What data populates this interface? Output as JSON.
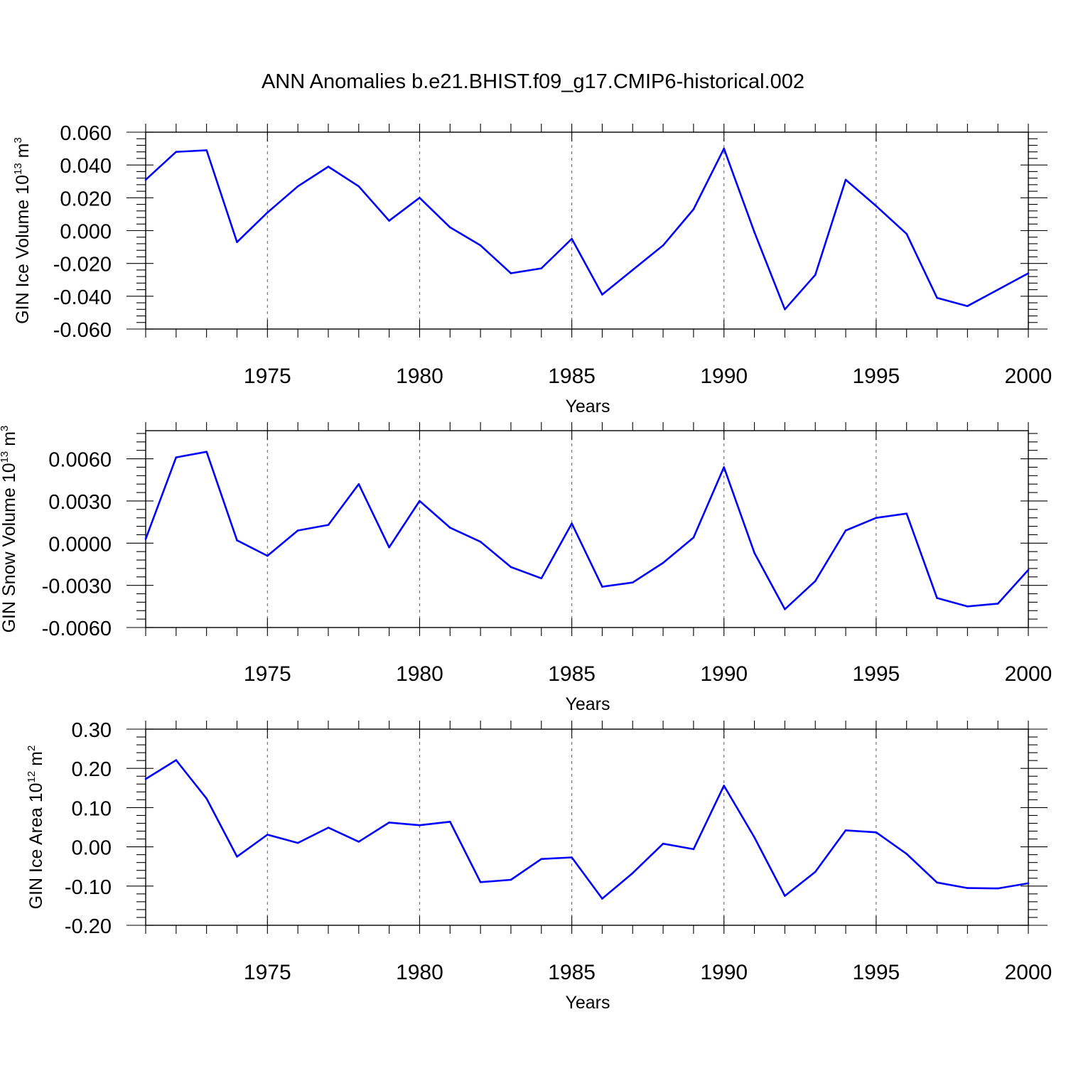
{
  "title": "ANN Anomalies b.e21.BHIST.f09_g17.CMIP6-historical.002",
  "styles": {
    "line_color": "#0000ff",
    "axis_color": "#000000",
    "grid_color": "#6a6a6a"
  },
  "chart_data": [
    {
      "type": "line",
      "xlabel": "Years",
      "ylabel_parts": {
        "main": "GIN Ice Volume 10",
        "exp": "13",
        "unit": " m",
        "unit_exp": "3"
      },
      "xlim": [
        1971,
        2000
      ],
      "ylim": [
        -0.06,
        0.06
      ],
      "yticks": [
        -0.06,
        -0.04,
        -0.02,
        0.0,
        0.02,
        0.04,
        0.06
      ],
      "ytick_labels": [
        "-0.060",
        "-0.040",
        "-0.020",
        "0.000",
        "0.020",
        "0.040",
        "0.060"
      ],
      "xticks": [
        1975,
        1980,
        1985,
        1990,
        1995,
        2000
      ],
      "xtick_labels": [
        "1975",
        "1980",
        "1985",
        "1990",
        "1995",
        "2000"
      ],
      "grid": "dashed vertical at labeled years",
      "series": [
        {
          "x": [
            1971,
            1972,
            1973,
            1974,
            1975,
            1976,
            1977,
            1978,
            1979,
            1980,
            1981,
            1982,
            1983,
            1984,
            1985,
            1986,
            1987,
            1988,
            1989,
            1990,
            1991,
            1992,
            1993,
            1994,
            1995,
            1996,
            1997,
            1998,
            1999,
            2000
          ],
          "y": [
            0.031,
            0.048,
            0.049,
            -0.007,
            0.011,
            0.027,
            0.039,
            0.027,
            0.006,
            0.02,
            0.002,
            -0.009,
            -0.026,
            -0.023,
            -0.005,
            -0.039,
            -0.024,
            -0.009,
            0.013,
            0.05,
            -0.001,
            -0.048,
            -0.027,
            0.031,
            0.015,
            -0.002,
            -0.041,
            -0.046,
            -0.036,
            -0.026
          ]
        }
      ]
    },
    {
      "type": "line",
      "xlabel": "Years",
      "ylabel_parts": {
        "main": "GIN Snow Volume 10",
        "exp": "13",
        "unit": " m",
        "unit_exp": "3"
      },
      "xlim": [
        1971,
        2000
      ],
      "ylim": [
        -0.006,
        0.008
      ],
      "yticks": [
        -0.006,
        -0.003,
        0.0,
        0.003,
        0.006
      ],
      "ytick_labels": [
        "-0.0060",
        "-0.0030",
        "0.0000",
        "0.0030",
        "0.0060"
      ],
      "xticks": [
        1975,
        1980,
        1985,
        1990,
        1995,
        2000
      ],
      "xtick_labels": [
        "1975",
        "1980",
        "1985",
        "1990",
        "1995",
        "2000"
      ],
      "grid": "dashed vertical at labeled years",
      "series": [
        {
          "x": [
            1971,
            1972,
            1973,
            1974,
            1975,
            1976,
            1977,
            1978,
            1979,
            1980,
            1981,
            1982,
            1983,
            1984,
            1985,
            1986,
            1987,
            1988,
            1989,
            1990,
            1991,
            1992,
            1993,
            1994,
            1995,
            1996,
            1997,
            1998,
            1999,
            2000
          ],
          "y": [
            0.0003,
            0.0061,
            0.0065,
            0.0002,
            -0.0009,
            0.0009,
            0.0013,
            0.0042,
            -0.0003,
            0.003,
            0.0011,
            0.0001,
            -0.0017,
            -0.0025,
            0.0014,
            -0.0031,
            -0.0028,
            -0.0014,
            0.0004,
            0.0054,
            -0.0007,
            -0.0047,
            -0.0027,
            0.0009,
            0.0018,
            0.0021,
            -0.0039,
            -0.0045,
            -0.0043,
            -0.0019
          ]
        }
      ]
    },
    {
      "type": "line",
      "xlabel": "Years",
      "ylabel_parts": {
        "main": "GIN Ice Area 10",
        "exp": "12",
        "unit": " m",
        "unit_exp": "2"
      },
      "xlim": [
        1971,
        2000
      ],
      "ylim": [
        -0.2,
        0.3
      ],
      "yticks": [
        -0.2,
        -0.1,
        0.0,
        0.1,
        0.2,
        0.3
      ],
      "ytick_labels": [
        "-0.20",
        "-0.10",
        "0.00",
        "0.10",
        "0.20",
        "0.30"
      ],
      "xticks": [
        1975,
        1980,
        1985,
        1990,
        1995,
        2000
      ],
      "xtick_labels": [
        "1975",
        "1980",
        "1985",
        "1990",
        "1995",
        "2000"
      ],
      "grid": "dashed vertical at labeled years",
      "series": [
        {
          "x": [
            1971,
            1972,
            1973,
            1974,
            1975,
            1976,
            1977,
            1978,
            1979,
            1980,
            1981,
            1982,
            1983,
            1984,
            1985,
            1986,
            1987,
            1988,
            1989,
            1990,
            1991,
            1992,
            1993,
            1994,
            1995,
            1996,
            1997,
            1998,
            1999,
            2000
          ],
          "y": [
            0.173,
            0.221,
            0.123,
            -0.025,
            0.031,
            0.01,
            0.049,
            0.013,
            0.062,
            0.055,
            0.064,
            -0.09,
            -0.084,
            -0.031,
            -0.027,
            -0.132,
            -0.067,
            0.008,
            -0.006,
            0.156,
            0.024,
            -0.125,
            -0.064,
            0.042,
            0.037,
            -0.018,
            -0.091,
            -0.105,
            -0.106,
            -0.093
          ]
        }
      ]
    }
  ]
}
